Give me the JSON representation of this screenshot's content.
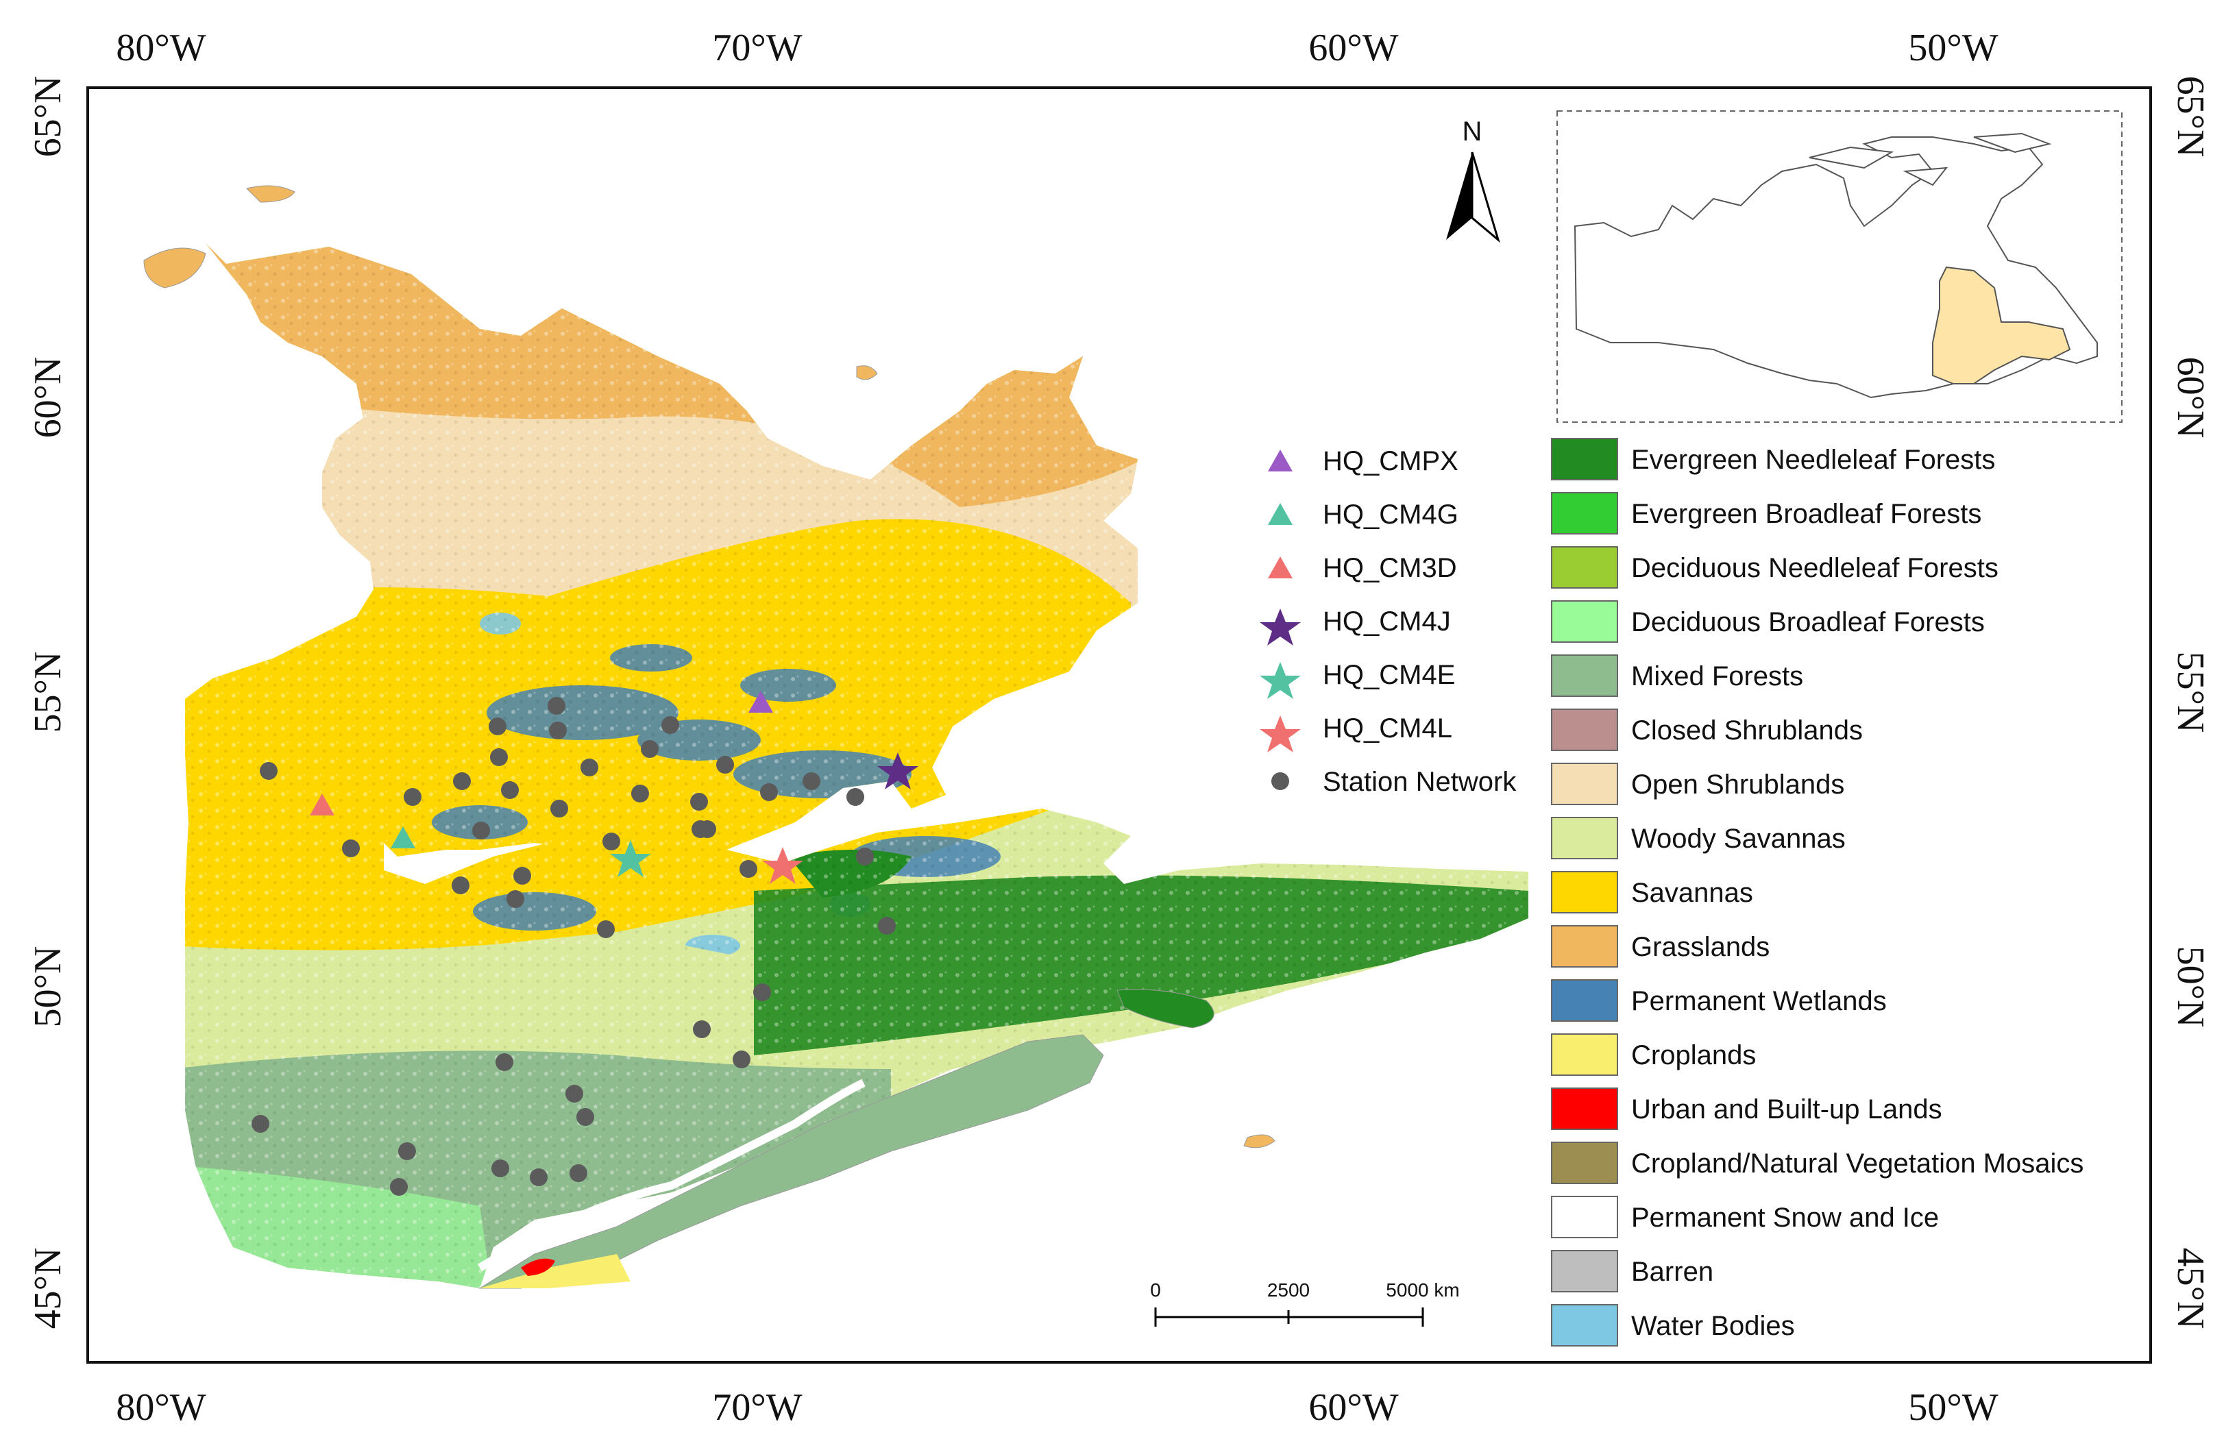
{
  "axes": {
    "top": [
      "80°W",
      "70°W",
      "60°W",
      "50°W"
    ],
    "bottom": [
      "80°W",
      "70°W",
      "60°W",
      "50°W"
    ],
    "left": [
      "65°N",
      "60°N",
      "55°N",
      "50°N",
      "45°N"
    ],
    "right": [
      "65°N",
      "60°N",
      "55°N",
      "50°N",
      "45°N"
    ]
  },
  "north_arrow": {
    "label": "N"
  },
  "scale_bar": {
    "labels": [
      "0",
      "2500",
      "5000 km"
    ]
  },
  "point_legend": [
    {
      "label": "HQ_CMPX",
      "shape": "triangle",
      "color": "#9b59c6"
    },
    {
      "label": "HQ_CM4G",
      "shape": "triangle",
      "color": "#52c2a0"
    },
    {
      "label": "HQ_CM3D",
      "shape": "triangle",
      "color": "#f07070"
    },
    {
      "label": "HQ_CM4J",
      "shape": "star",
      "color": "#5e2d86"
    },
    {
      "label": "HQ_CM4E",
      "shape": "star",
      "color": "#52c2a0"
    },
    {
      "label": "HQ_CM4L",
      "shape": "star",
      "color": "#f07070"
    },
    {
      "label": "Station Network",
      "shape": "circle",
      "color": "#5b5b5b"
    }
  ],
  "landcover_legend": [
    {
      "label": "Evergreen Needleleaf Forests",
      "color": "#228b22"
    },
    {
      "label": "Evergreen Broadleaf Forests",
      "color": "#32cd32"
    },
    {
      "label": "Deciduous Needleleaf Forests",
      "color": "#9acd32"
    },
    {
      "label": "Deciduous Broadleaf Forests",
      "color": "#98fb98"
    },
    {
      "label": "Mixed Forests",
      "color": "#8fbc8f"
    },
    {
      "label": "Closed Shrublands",
      "color": "#bc8f8f"
    },
    {
      "label": "Open Shrublands",
      "color": "#f5deb3"
    },
    {
      "label": "Woody Savannas",
      "color": "#dbeb9d"
    },
    {
      "label": "Savannas",
      "color": "#ffd700"
    },
    {
      "label": "Grasslands",
      "color": "#f0b75e"
    },
    {
      "label": "Permanent Wetlands",
      "color": "#4682b4"
    },
    {
      "label": "Croplands",
      "color": "#faee6e"
    },
    {
      "label": "Urban and Built-up Lands",
      "color": "#ff0000"
    },
    {
      "label": "Cropland/Natural Vegetation Mosaics",
      "color": "#9c8d50"
    },
    {
      "label": "Permanent Snow and Ice",
      "color": "#ffffff"
    },
    {
      "label": "Barren",
      "color": "#bebebe"
    },
    {
      "label": "Water Bodies",
      "color": "#7ec8e3"
    }
  ],
  "inset": {
    "highlight_color": "#ffe4a8"
  }
}
